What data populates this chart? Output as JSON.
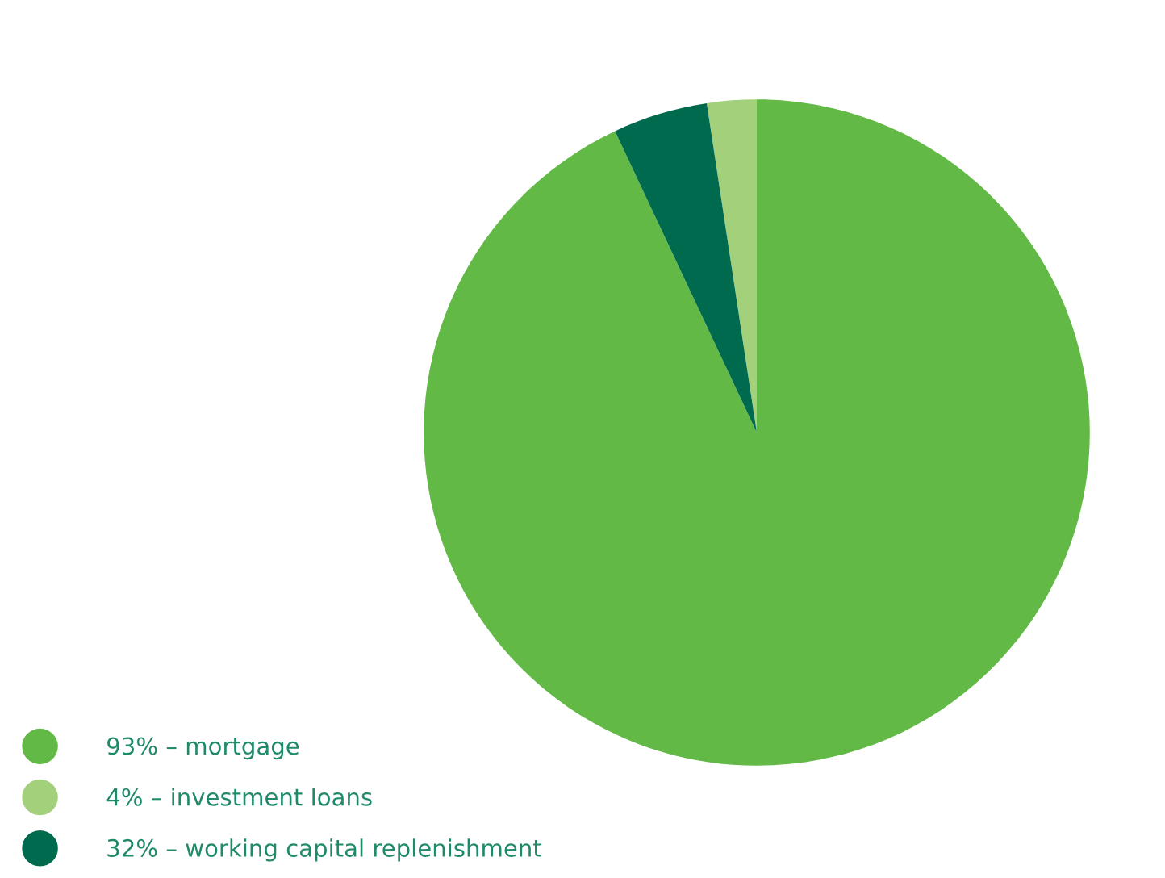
{
  "chart_data": {
    "type": "pie",
    "categories": [
      "93% – mortgage",
      "4% – investment loans",
      "32% – working capital replenishment"
    ],
    "values": [
      93,
      2.4,
      4.6
    ],
    "colors": [
      "#62b946",
      "#a3d07a",
      "#006a4e"
    ],
    "legend": "bottom left"
  }
}
